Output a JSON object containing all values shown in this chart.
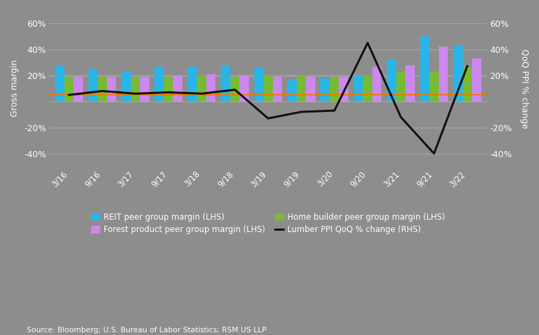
{
  "x_labels": [
    "3/16",
    "9/16",
    "3/17",
    "9/17",
    "3/18",
    "9/18",
    "3/19",
    "9/19",
    "3/20",
    "9/20",
    "3/21",
    "9/21",
    "3/22"
  ],
  "reit_margin": [
    28,
    25,
    23,
    27,
    27,
    28,
    26,
    16,
    18,
    20,
    32,
    50,
    43
  ],
  "forest_margin": [
    19,
    19,
    19,
    20,
    21,
    20,
    19,
    19,
    19,
    27,
    28,
    42,
    33
  ],
  "homebuilder_margin": [
    19,
    19,
    19,
    19,
    20,
    19,
    20,
    20,
    19,
    20,
    23,
    23,
    26
  ],
  "lumber_ppi": [
    5,
    8,
    6,
    7,
    6,
    9,
    -13,
    -8,
    -7,
    45,
    -12,
    -40,
    27
  ],
  "orange_line_value": 5,
  "ylim": [
    -50,
    70
  ],
  "yticks": [
    -40,
    -20,
    0,
    20,
    40,
    60
  ],
  "ytick_labels": [
    "-40%",
    "-20%",
    "",
    "20%",
    "40%",
    "60%"
  ],
  "bg_color": "#8d8d8d",
  "bar_width": 0.28,
  "reit_color": "#29b5e8",
  "forest_color": "#cc88ee",
  "homebuilder_color": "#77bb33",
  "ppi_color": "#111111",
  "orange_color": "#ee7700",
  "grid_color": "#b0b0b0",
  "axis_label_left": "Gross margin",
  "axis_label_right": "QoQ PPI % change",
  "source_text": "Source: Bloomberg; U.S. Bureau of Labor Statistics; RSM US LLP",
  "legend_items": [
    {
      "label": "REIT peer group margin (LHS)",
      "color": "#29b5e8",
      "type": "bar"
    },
    {
      "label": "Forest product peer group margin (LHS)",
      "color": "#cc88ee",
      "type": "bar"
    },
    {
      "label": "Home builder peer group margin (LHS)",
      "color": "#77bb33",
      "type": "bar"
    },
    {
      "label": "Lumber PPI QoQ % change (RHS)",
      "color": "#111111",
      "type": "line"
    }
  ]
}
